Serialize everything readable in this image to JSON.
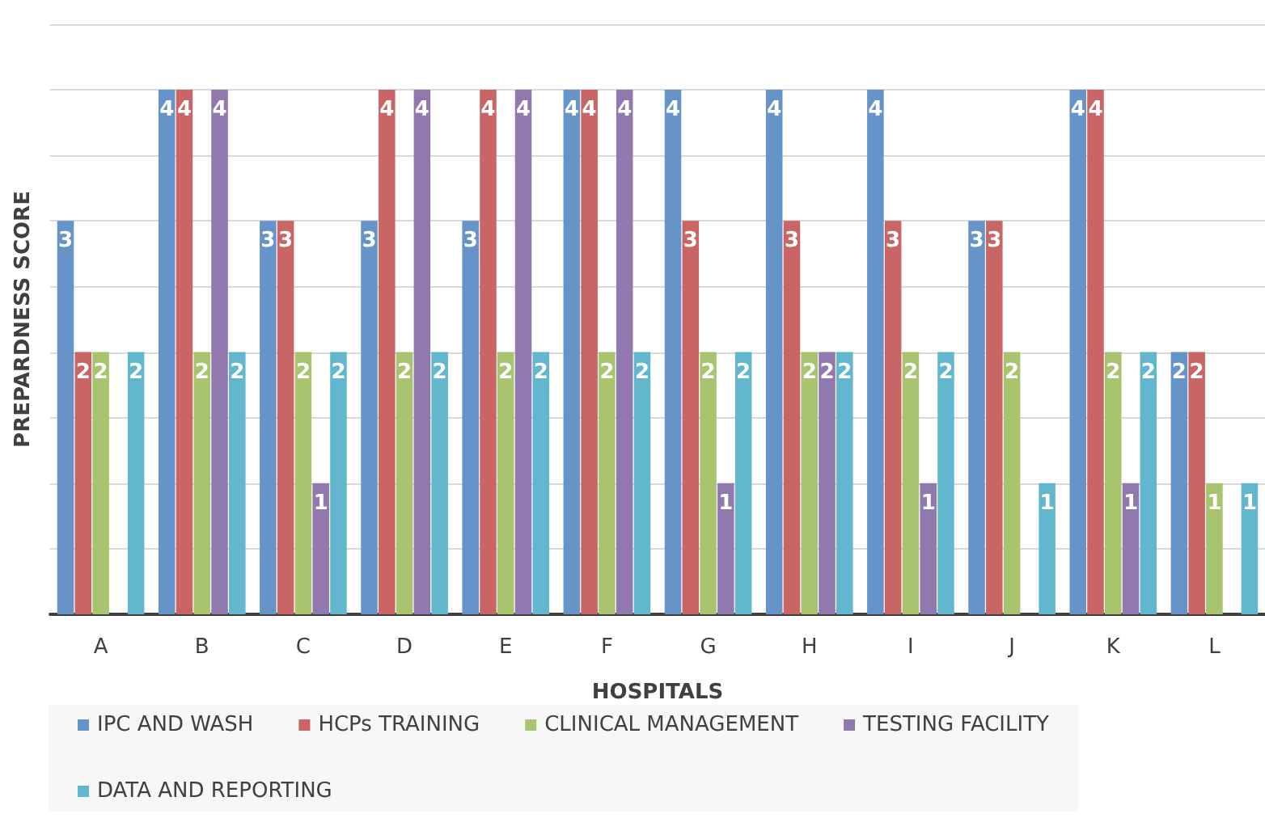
{
  "chart_data": {
    "type": "bar",
    "xlabel": "HOSPITALS",
    "ylabel": "PREPARDNESS SCORE",
    "categories": [
      "A",
      "B",
      "C",
      "D",
      "E",
      "F",
      "G",
      "H",
      "I",
      "J",
      "K",
      "L"
    ],
    "series": [
      {
        "name": "IPC AND WASH",
        "color": "#6694c8",
        "values": [
          3,
          4,
          3,
          3,
          3,
          4,
          4,
          4,
          4,
          3,
          4,
          2
        ]
      },
      {
        "name": "HCPs TRAINING",
        "color": "#c96564",
        "values": [
          2,
          4,
          3,
          4,
          4,
          4,
          3,
          3,
          3,
          3,
          4,
          2
        ]
      },
      {
        "name": "CLINICAL MANAGEMENT",
        "color": "#a9c46f",
        "values": [
          2,
          2,
          2,
          2,
          2,
          2,
          2,
          2,
          2,
          2,
          2,
          1
        ]
      },
      {
        "name": "TESTING FACILITY",
        "color": "#9179b0",
        "values": [
          null,
          4,
          1,
          4,
          4,
          4,
          1,
          2,
          1,
          null,
          1,
          null
        ]
      },
      {
        "name": "DATA AND REPORTING",
        "color": "#62b6cd",
        "values": [
          2,
          2,
          2,
          2,
          2,
          2,
          2,
          2,
          2,
          1,
          2,
          1
        ]
      }
    ],
    "ylim": [
      0,
      4.5
    ],
    "yticks": [
      {
        "value": 0,
        "label": null
      },
      {
        "value": 0.5,
        "label": null
      },
      {
        "value": 1,
        "label": null
      },
      {
        "value": 1.5,
        "label": null
      },
      {
        "value": 2,
        "label": null
      },
      {
        "value": 2.5,
        "label": null
      },
      {
        "value": 3,
        "label": null
      },
      {
        "value": 3.5,
        "label": null
      },
      {
        "value": 4,
        "label": null
      },
      {
        "value": 4.5,
        "label": null
      }
    ],
    "tick_labels": "x",
    "grid": "y",
    "legend": "bottom",
    "data_labels": true
  }
}
